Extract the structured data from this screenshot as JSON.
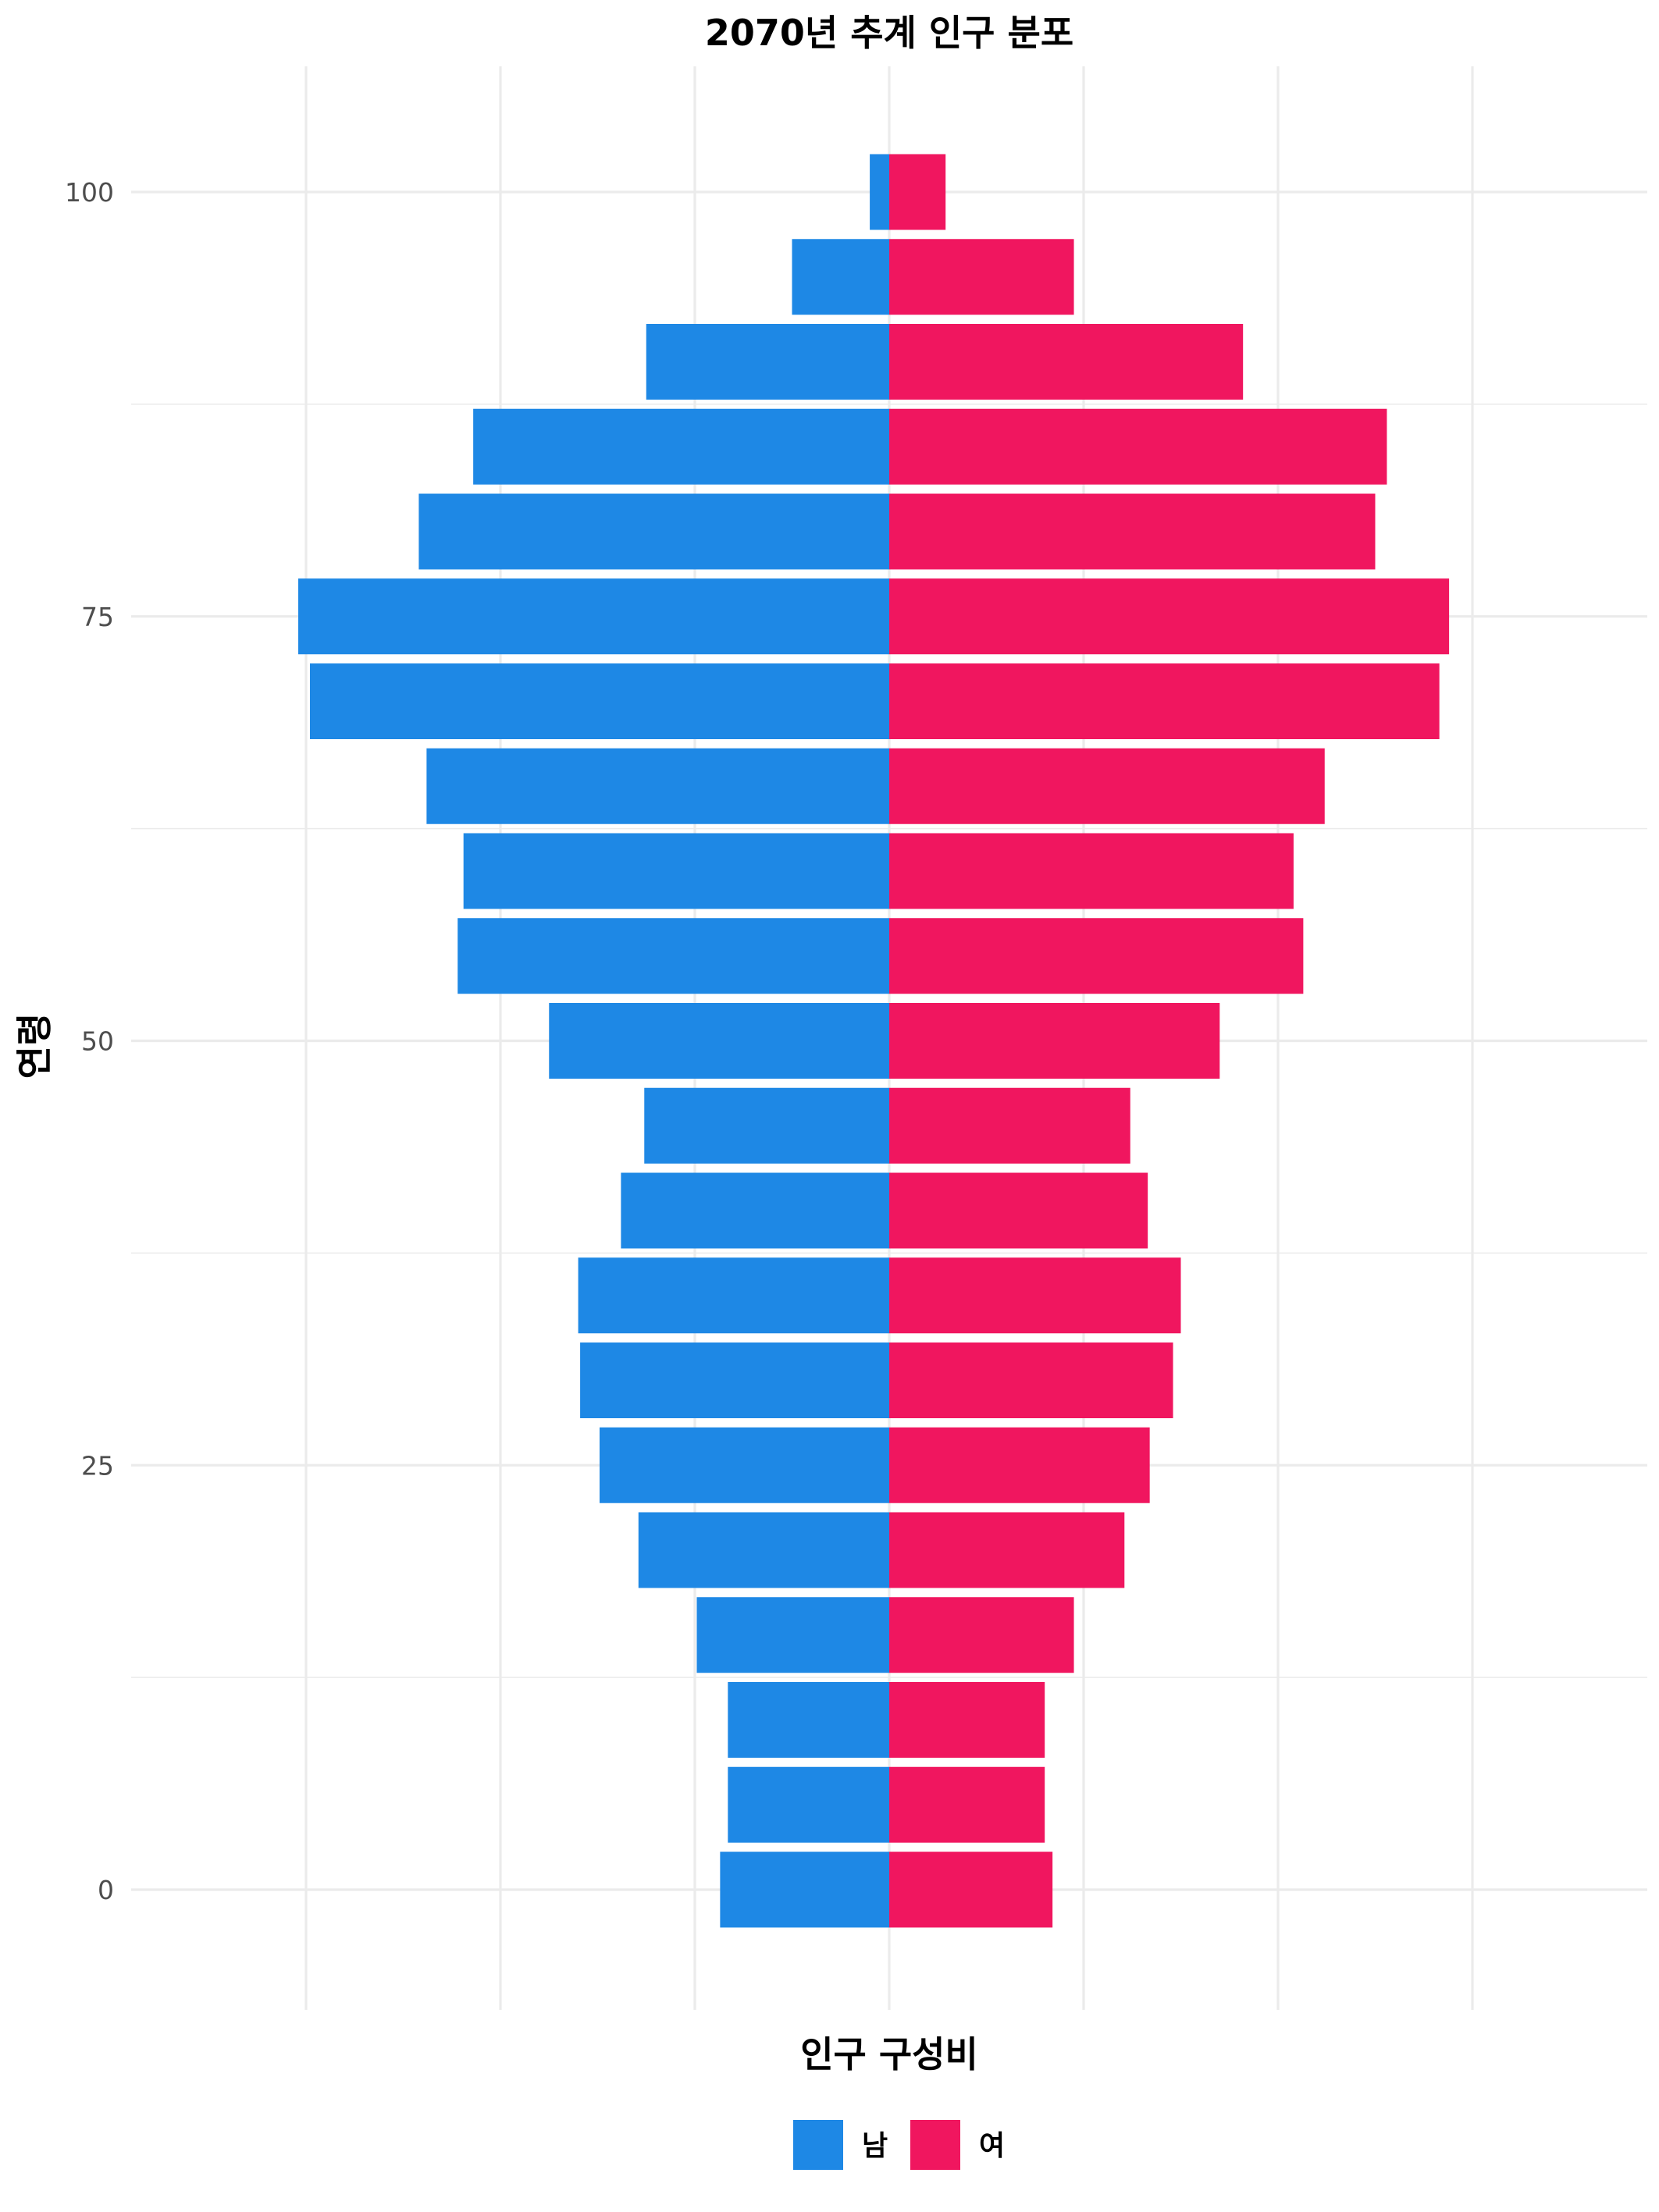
{
  "chart_data": {
    "type": "bar",
    "orientation": "horizontal",
    "title": "2070년 추계 인구 분포",
    "xlabel": "인구 구성비",
    "ylabel": "연령",
    "y_ticks": [
      0,
      25,
      50,
      75,
      100
    ],
    "ylim": [
      -7,
      107.5
    ],
    "xlim": [
      -0.039,
      0.039
    ],
    "x_ticks_unlabeled": [
      -0.03,
      -0.02,
      -0.01,
      0,
      0.01,
      0.02,
      0.03
    ],
    "grid": true,
    "legend_position": "bottom",
    "categories": [
      0,
      5,
      10,
      15,
      20,
      25,
      30,
      35,
      40,
      45,
      50,
      55,
      60,
      65,
      70,
      75,
      80,
      85,
      90,
      95,
      100
    ],
    "series": [
      {
        "name": "남",
        "color": "#1E88E5",
        "values": [
          -0.0087,
          -0.0083,
          -0.0083,
          -0.0099,
          -0.0129,
          -0.0149,
          -0.0159,
          -0.016,
          -0.0138,
          -0.0126,
          -0.0175,
          -0.0222,
          -0.0219,
          -0.0238,
          -0.0298,
          -0.0304,
          -0.0242,
          -0.0214,
          -0.0125,
          -0.005,
          -0.001
        ]
      },
      {
        "name": "여",
        "color": "#F0165F",
        "values": [
          0.0084,
          0.008,
          0.008,
          0.0095,
          0.0121,
          0.0134,
          0.0146,
          0.015,
          0.0133,
          0.0124,
          0.017,
          0.0213,
          0.0208,
          0.0224,
          0.0283,
          0.0288,
          0.025,
          0.0256,
          0.0182,
          0.0095,
          0.0029
        ]
      }
    ]
  }
}
